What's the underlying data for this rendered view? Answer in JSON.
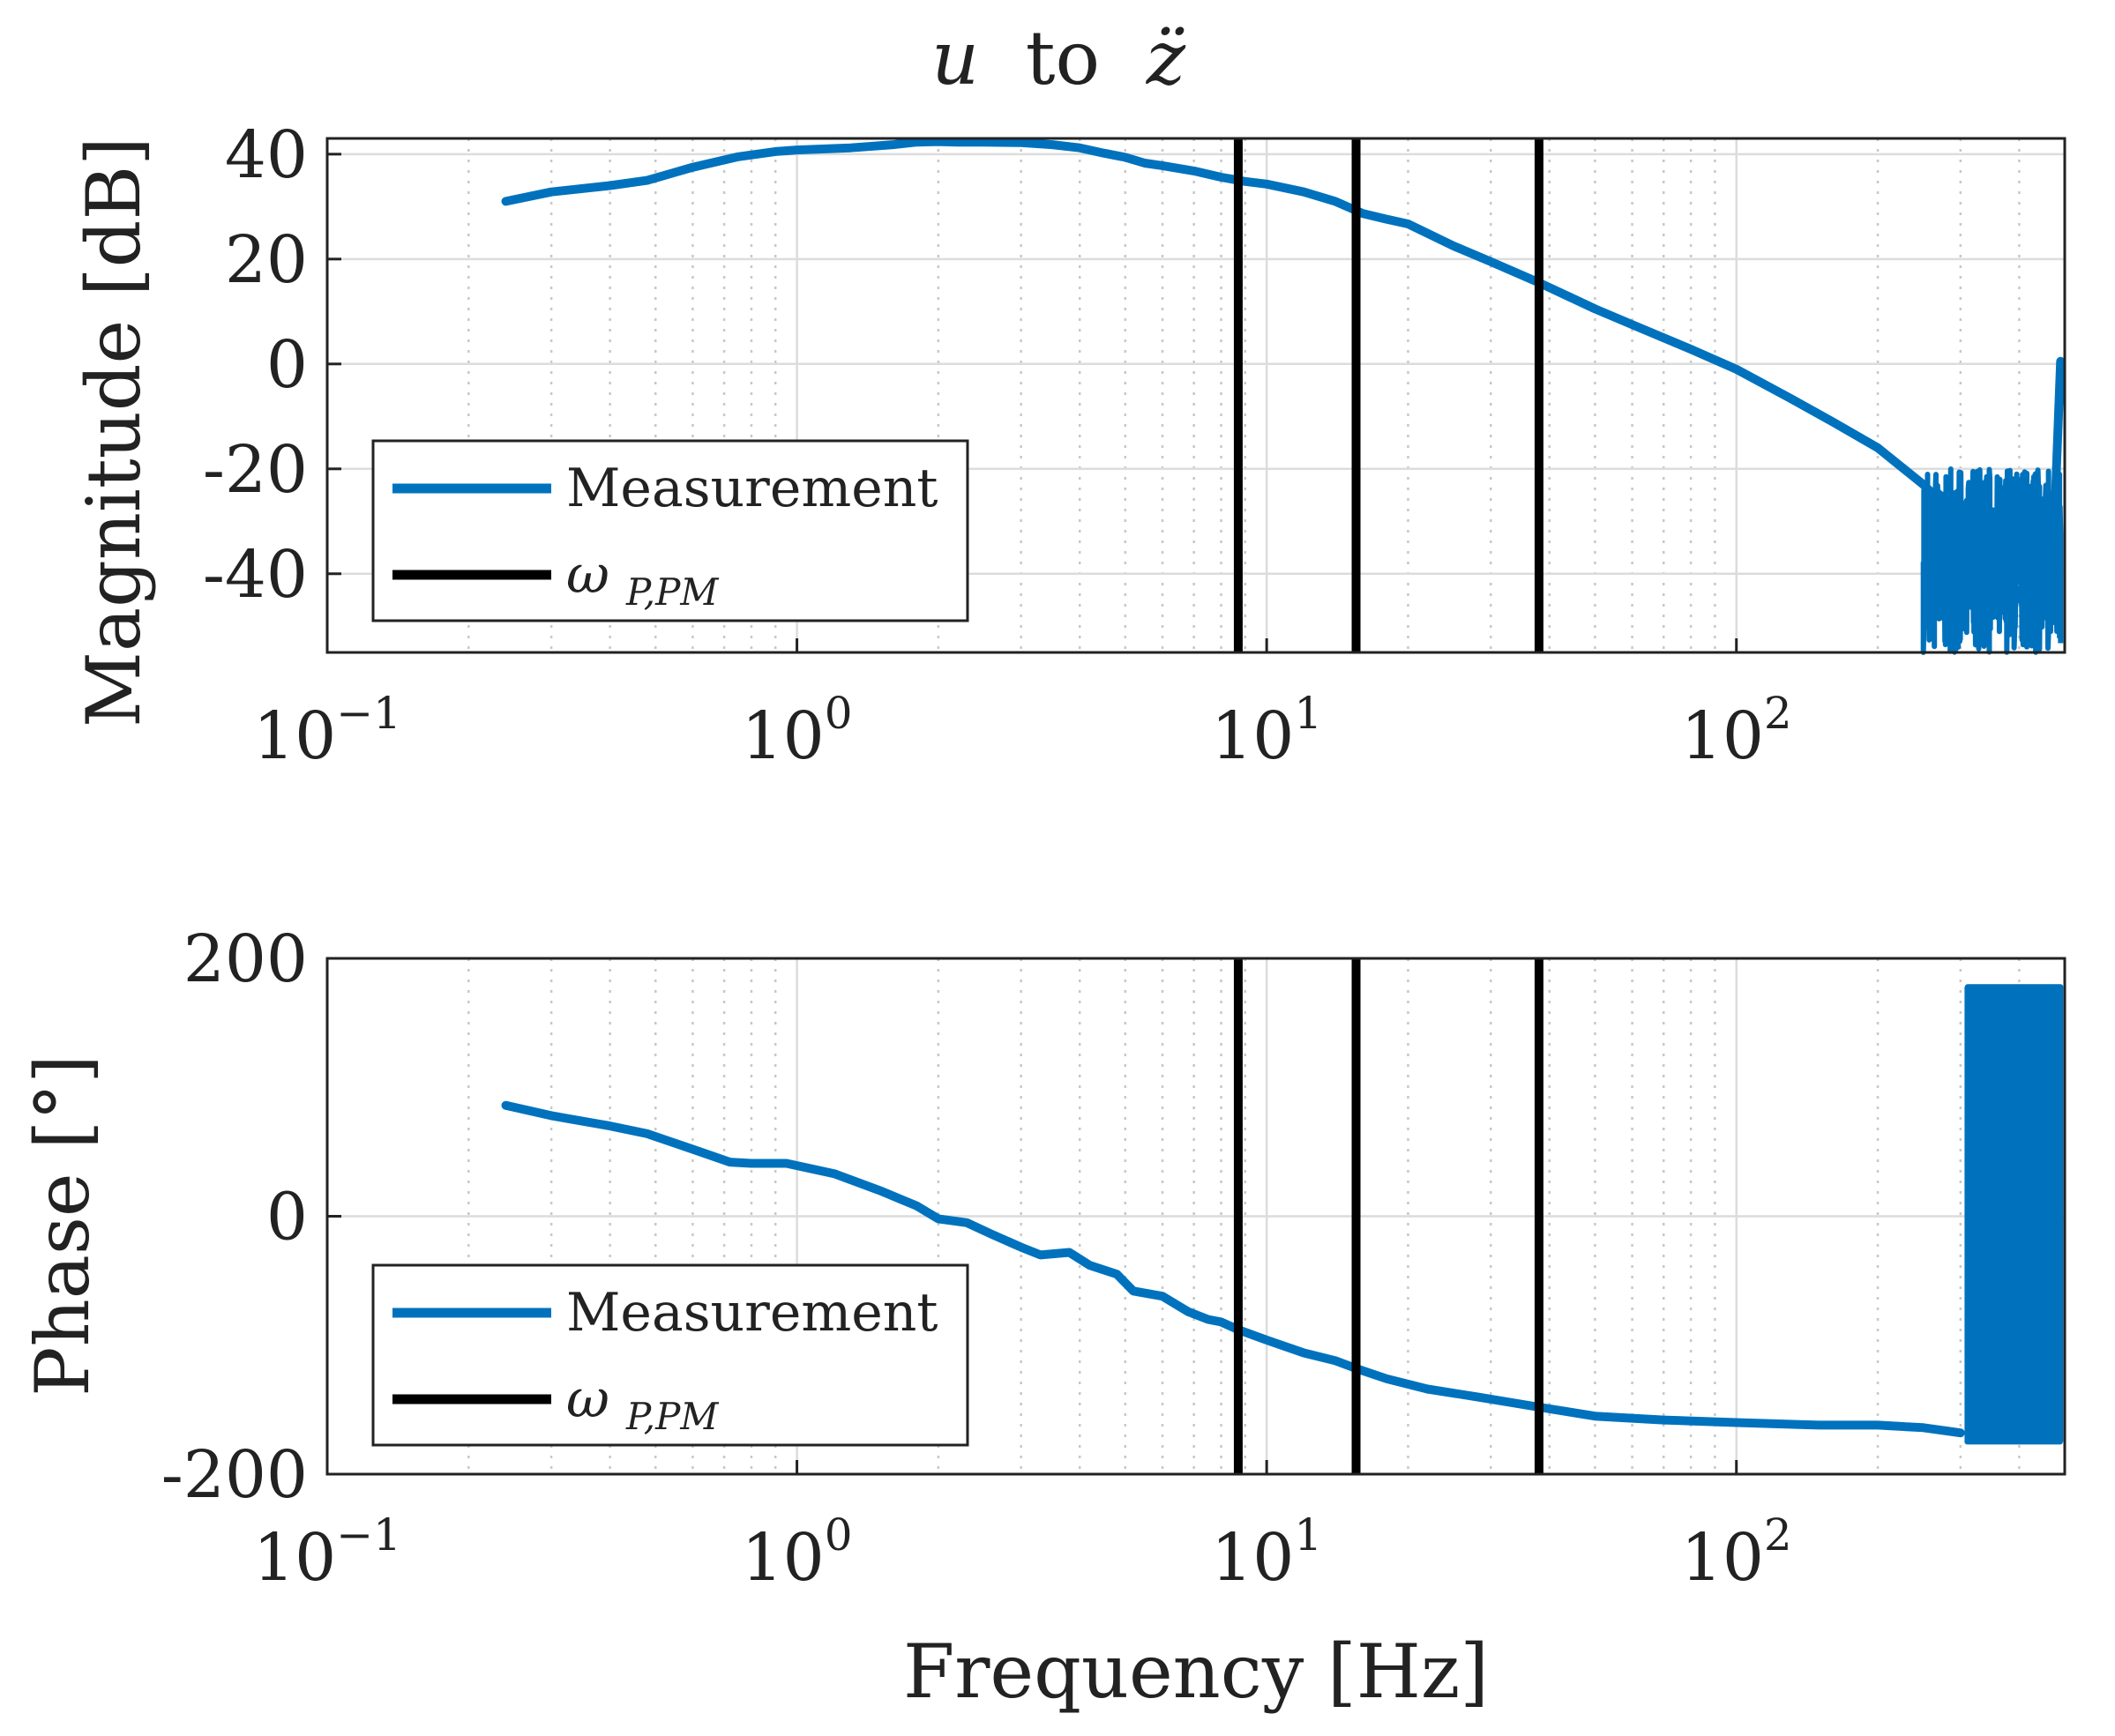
{
  "chart_data": [
    {
      "type": "line",
      "panel": "magnitude",
      "title_parts": {
        "u": "u",
        "to": "to",
        "z": "z̈"
      },
      "xlabel": "",
      "ylabel": "Magnitude [dB]",
      "xscale": "log",
      "xlim": [
        0.1,
        500
      ],
      "ylim": [
        -55,
        43
      ],
      "yticks": [
        -40,
        -20,
        0,
        20,
        40
      ],
      "ytick_labels": [
        "-40",
        "-20",
        "0",
        "20",
        "40"
      ],
      "xticks": [
        {
          "base": "10",
          "exp": "−1",
          "value": 0.1
        },
        {
          "base": "10",
          "exp": "0",
          "value": 1
        },
        {
          "base": "10",
          "exp": "1",
          "value": 10
        },
        {
          "base": "10",
          "exp": "2",
          "value": 100
        }
      ],
      "grid": true,
      "legend": {
        "placement": "bottom-left",
        "entries": [
          {
            "label": "Measurement",
            "color": "#0072bd"
          },
          {
            "label_base": "ω",
            "label_sub": "P,PM",
            "color": "#000000"
          }
        ]
      },
      "series": [
        {
          "name": "Measurement",
          "color": "#0072bd",
          "x": [
            0.24,
            0.3,
            0.4,
            0.48,
            0.6,
            0.75,
            0.9,
            1.0,
            1.3,
            1.6,
            1.8,
            2.0,
            2.2,
            2.5,
            3.0,
            3.5,
            4.0,
            4.5,
            5.0,
            5.5,
            6.0,
            7.0,
            8.0,
            9.0,
            10.0,
            12.0,
            14.0,
            16.0,
            18.0,
            20.0,
            25.0,
            30.0,
            38.0,
            50.0,
            60.0,
            80.0,
            100.0,
            130.0,
            160.0,
            200.0,
            250.0,
            300.0,
            350.0,
            400.0,
            430.0,
            450.0,
            470.0,
            480.0,
            490.0
          ],
          "values": [
            31,
            32.8,
            34,
            35,
            37.5,
            39.5,
            40.5,
            40.8,
            41.2,
            41.8,
            42.3,
            42.4,
            42.3,
            42.3,
            42.2,
            41.8,
            41.2,
            40.2,
            39.4,
            38.3,
            37.8,
            36.8,
            35.6,
            34.8,
            34.3,
            32.8,
            31.0,
            28.7,
            27.6,
            26.7,
            22.5,
            19.5,
            15.5,
            10.5,
            7.5,
            2.8,
            -1.0,
            -6.5,
            -11.0,
            -16.0,
            -23.0,
            -30.0,
            -36.0,
            -44.0,
            -50.0,
            -48.0,
            -44.0,
            -20.0,
            0.5
          ],
          "noise_band": {
            "x_from": 250,
            "x_to": 490,
            "low": -55,
            "high": -20
          }
        },
        {
          "name": "ω_{P,PM}",
          "color": "#000000",
          "type": "vlines",
          "x": [
            8.7,
            15.5,
            38.0
          ]
        }
      ]
    },
    {
      "type": "line",
      "panel": "phase",
      "xlabel": "Frequency [Hz]",
      "ylabel": "Phase [°]",
      "xscale": "log",
      "xlim": [
        0.1,
        500
      ],
      "ylim": [
        -200,
        200
      ],
      "yticks": [
        -200,
        0,
        200
      ],
      "ytick_labels": [
        "-200",
        "0",
        "200"
      ],
      "xticks": [
        {
          "base": "10",
          "exp": "−1",
          "value": 0.1
        },
        {
          "base": "10",
          "exp": "0",
          "value": 1
        },
        {
          "base": "10",
          "exp": "1",
          "value": 10
        },
        {
          "base": "10",
          "exp": "2",
          "value": 100
        }
      ],
      "grid": true,
      "legend": {
        "placement": "bottom-left",
        "entries": [
          {
            "label": "Measurement",
            "color": "#0072bd"
          },
          {
            "label_base": "ω",
            "label_sub": "P,PM",
            "color": "#000000"
          }
        ]
      },
      "series": [
        {
          "name": "Measurement",
          "color": "#0072bd",
          "x": [
            0.24,
            0.3,
            0.4,
            0.48,
            0.6,
            0.72,
            0.8,
            0.95,
            1.2,
            1.5,
            1.8,
            2.0,
            2.3,
            2.6,
            3.0,
            3.3,
            3.8,
            4.2,
            4.8,
            5.2,
            6.0,
            6.8,
            7.5,
            8.0,
            8.7,
            10.0,
            12.0,
            14.0,
            15.5,
            18.0,
            22.0,
            28.0,
            38.0,
            50.0,
            70.0,
            100.0,
            150.0,
            200.0,
            250.0,
            300.0
          ],
          "values": [
            86,
            78,
            70,
            64,
            52,
            42,
            41,
            41,
            33,
            20,
            8,
            -2,
            -5,
            -14,
            -24,
            -30,
            -28,
            -38,
            -45,
            -58,
            -62,
            -74,
            -80,
            -82,
            -88,
            -96,
            -106,
            -112,
            -118,
            -126,
            -134,
            -140,
            -148,
            -155,
            -158,
            -160,
            -162,
            -162,
            -164,
            -168
          ],
          "noise_band": {
            "x_from": 310,
            "x_to": 490,
            "low": -175,
            "high": 178
          }
        },
        {
          "name": "ω_{P,PM}",
          "color": "#000000",
          "type": "vlines",
          "x": [
            8.7,
            15.5,
            38.0
          ]
        }
      ]
    }
  ]
}
